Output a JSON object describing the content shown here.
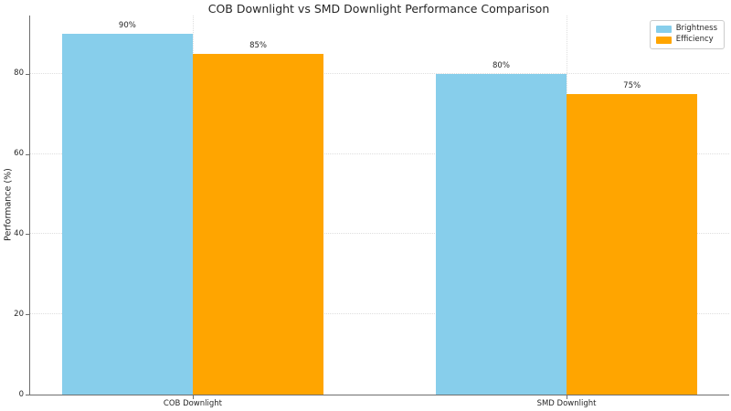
{
  "chart_data": {
    "type": "bar",
    "title": "COB Downlight vs SMD Downlight Performance Comparison",
    "ylabel": "Performance (%)",
    "xlabel": "",
    "categories": [
      "COB Downlight",
      "SMD Downlight"
    ],
    "series": [
      {
        "name": "Brightness",
        "color": "#87CEEB",
        "values": [
          90,
          80
        ],
        "value_labels": [
          "90%",
          "80%"
        ]
      },
      {
        "name": "Efficiency",
        "color": "#FFA500",
        "values": [
          85,
          75
        ],
        "value_labels": [
          "85%",
          "75%"
        ]
      }
    ],
    "yticks": [
      {
        "label": "0",
        "value": 0
      },
      {
        "label": "20",
        "value": 20
      },
      {
        "label": "40",
        "value": 40
      },
      {
        "label": "60",
        "value": 60
      },
      {
        "label": "80",
        "value": 80
      }
    ],
    "ylim": [
      0,
      94.5
    ],
    "xlim": [
      -0.435,
      1.435
    ],
    "bar_width": 0.35,
    "grid": true,
    "grid_style": "dotted",
    "legend_position": "upper right",
    "colors": {
      "brightness": "#87CEEB",
      "efficiency": "#FFA500",
      "axis": "#6e6e6e",
      "gridline": "#dedede",
      "text": "#262626"
    }
  }
}
